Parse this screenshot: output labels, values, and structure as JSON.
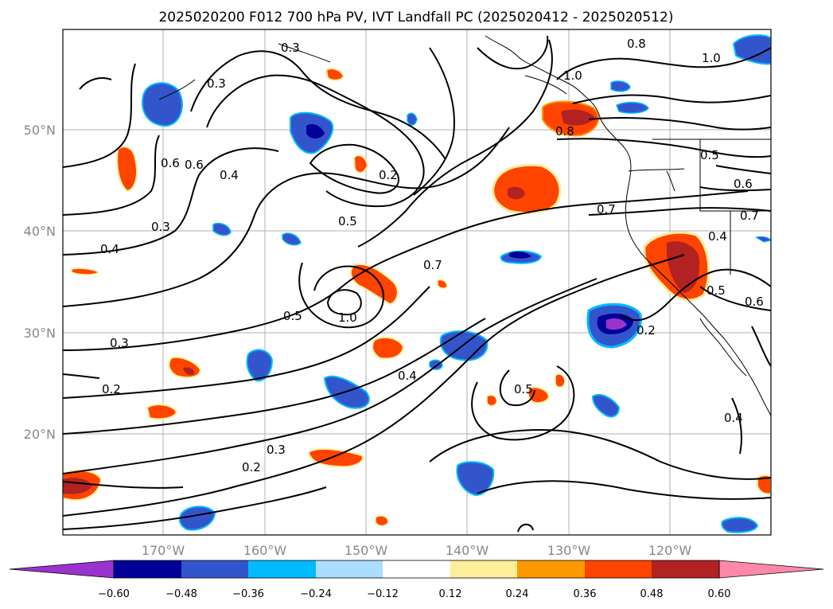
{
  "title": "2025020200 F012 700 hPa PV, IVT Landfall PC (2025020412 - 2025020512)",
  "lon_ticks": [
    "170°W",
    "160°W",
    "150°W",
    "140°W",
    "130°W",
    "120°W"
  ],
  "lat_ticks": [
    "50°N",
    "40°N",
    "30°N",
    "20°N"
  ],
  "colorbar": {
    "ticks": [
      "−0.60",
      "−0.48",
      "−0.36",
      "−0.24",
      "−0.12",
      "0.12",
      "0.24",
      "0.36",
      "0.48",
      "0.60"
    ],
    "colors": [
      "#9933cc",
      "#000099",
      "#3355cc",
      "#00bbff",
      "#aaddff",
      "#ffffff",
      "#ffee99",
      "#ff9900",
      "#ff4400",
      "#b22222",
      "#ff88aa"
    ],
    "extend": "both"
  },
  "contour_labels": [
    "0.3",
    "0.3",
    "0.6",
    "0.6",
    "0.4",
    "0.3",
    "0.4",
    "0.2",
    "0.5",
    "0.5",
    "1.0",
    "0.3",
    "0.2",
    "0.3",
    "0.2",
    "0.4",
    "0.7",
    "0.5",
    "0.8",
    "1.0",
    "1.0",
    "0.8",
    "0.5",
    "0.6",
    "0.7",
    "0.4",
    "0.7",
    "0.5",
    "0.6",
    "0.2",
    "0.4"
  ],
  "anomaly_colors": {
    "neg_light": "#aaddff",
    "neg_mid": "#00bbff",
    "neg_strong": "#3355cc",
    "neg_dark": "#000099",
    "neg_extreme": "#9933cc",
    "pos_light": "#ffee99",
    "pos_mid": "#ff9900",
    "pos_strong": "#ff4400",
    "pos_dark": "#b22222"
  }
}
